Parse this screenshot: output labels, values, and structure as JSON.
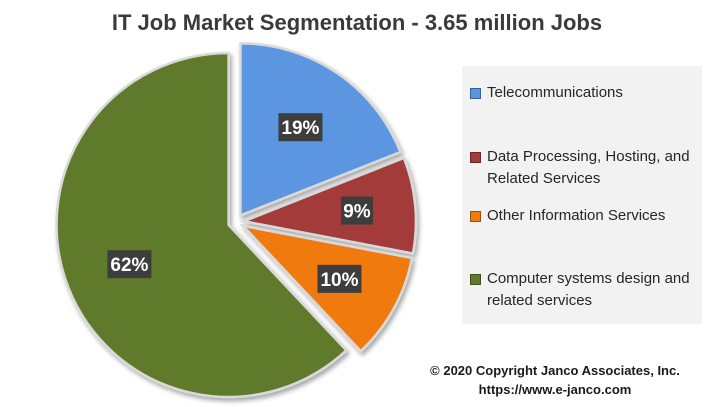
{
  "chart_data": {
    "type": "pie",
    "title": "IT Job Market Segmentation - 3.65 million Jobs",
    "slices": [
      {
        "label": "Telecommunications",
        "value": 19,
        "display": "19%",
        "color": "#5b95e0"
      },
      {
        "label": "Data Processing, Hosting, and Related Services",
        "value": 9,
        "display": "9%",
        "color": "#a33b3b"
      },
      {
        "label": "Other Information Services",
        "value": 10,
        "display": "10%",
        "color": "#f07a10"
      },
      {
        "label": "Computer systems design and related services",
        "value": 62,
        "display": "62%",
        "color": "#5e7a2a"
      }
    ],
    "legend_placement": "right"
  },
  "legend": {
    "items": [
      {
        "label": "Telecommunications",
        "color": "#5b95e0"
      },
      {
        "label": "Data Processing, Hosting, and Related Services",
        "color": "#a33b3b"
      },
      {
        "label": "Other Information Services",
        "color": "#f07a10"
      },
      {
        "label": "Computer systems design and related services",
        "color": "#5e7a2a"
      }
    ]
  },
  "footer": {
    "copyright": "© 2020  Copyright Janco Associates, Inc.",
    "url": "https://www.e-janco.com"
  }
}
